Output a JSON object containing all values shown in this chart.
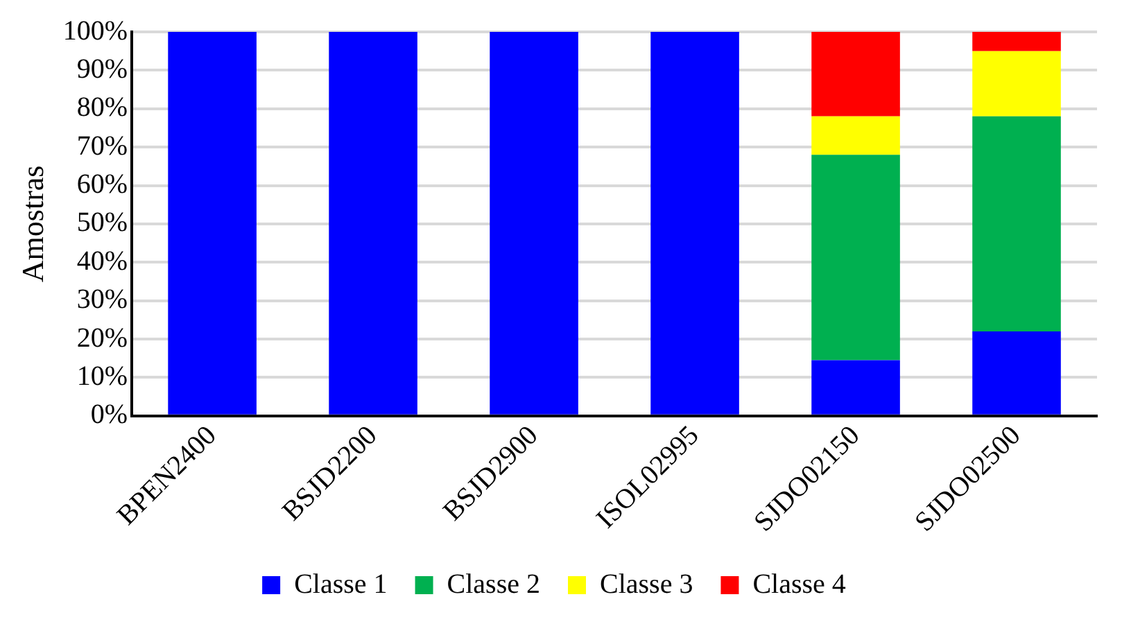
{
  "chart_data": {
    "type": "bar",
    "stacked": true,
    "ylabel": "Amostras",
    "categories": [
      "BPEN2400",
      "BSJD2200",
      "BSJD2900",
      "ISOL02995",
      "SJDO02150",
      "SJDO02500"
    ],
    "series": [
      {
        "name": "Classe 1",
        "color": "#0000ff",
        "values": [
          100,
          100,
          100,
          100,
          14.5,
          22
        ]
      },
      {
        "name": "Classe 2",
        "color": "#00b050",
        "values": [
          0,
          0,
          0,
          0,
          53.5,
          56
        ]
      },
      {
        "name": "Classe 3",
        "color": "#ffff00",
        "values": [
          0,
          0,
          0,
          0,
          10,
          17
        ]
      },
      {
        "name": "Classe 4",
        "color": "#ff0000",
        "values": [
          0,
          0,
          0,
          0,
          22,
          5
        ]
      }
    ],
    "ylim": [
      0,
      100
    ],
    "yticks": [
      {
        "value": 0,
        "label": "0%"
      },
      {
        "value": 10,
        "label": "10%"
      },
      {
        "value": 20,
        "label": "20%"
      },
      {
        "value": 30,
        "label": "30%"
      },
      {
        "value": 40,
        "label": "40%"
      },
      {
        "value": 50,
        "label": "50%"
      },
      {
        "value": 60,
        "label": "60%"
      },
      {
        "value": 70,
        "label": "70%"
      },
      {
        "value": 80,
        "label": "80%"
      },
      {
        "value": 90,
        "label": "90%"
      },
      {
        "value": 100,
        "label": "100%"
      }
    ],
    "grid": "y",
    "legend": "bottom"
  }
}
